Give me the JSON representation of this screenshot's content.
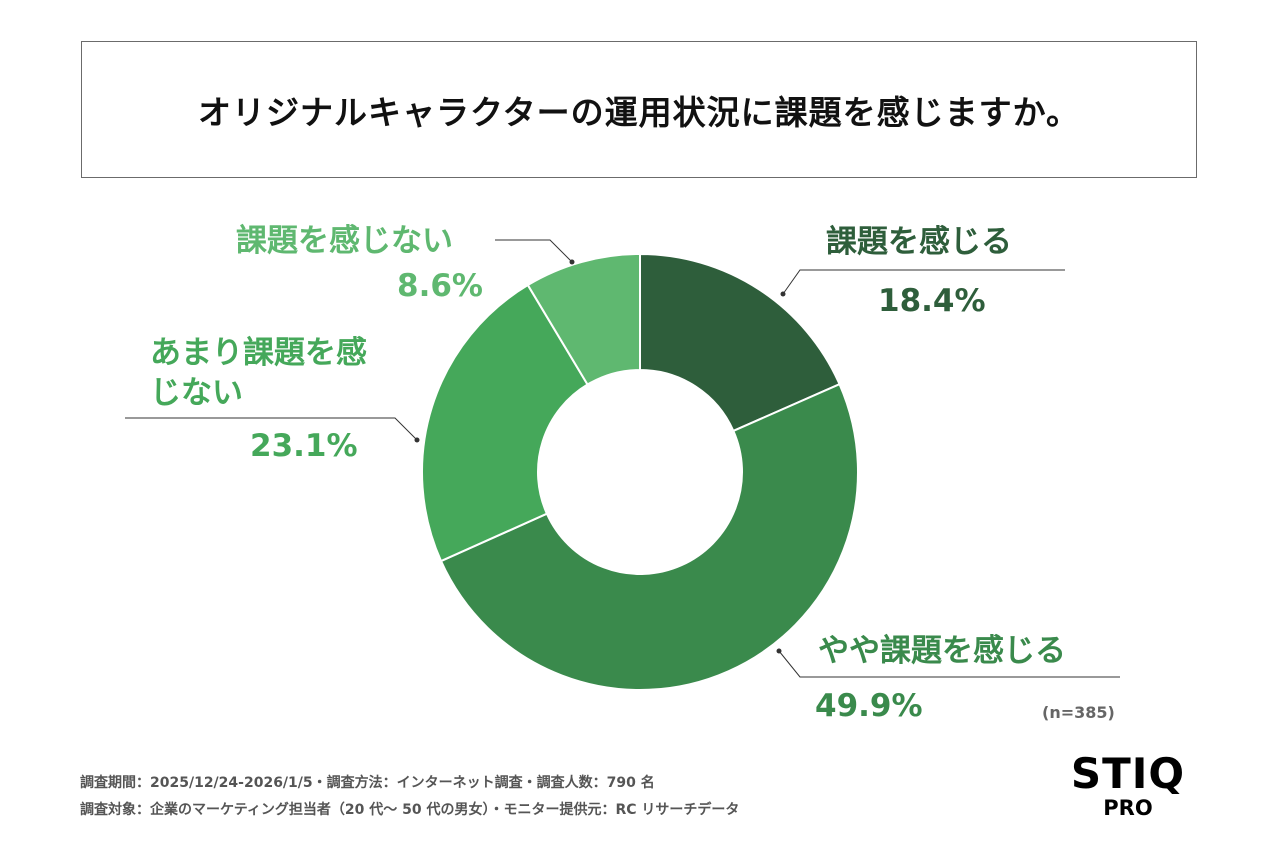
{
  "title": "オリジナルキャラクターの運用状況に課題を感じますか。",
  "chart_data": {
    "type": "pie",
    "donut": true,
    "title": "オリジナルキャラクターの運用状況に課題を感じますか。",
    "categories": [
      "課題を感じる",
      "やや課題を感じる",
      "あまり課題を感じない",
      "課題を感じない"
    ],
    "values": [
      18.4,
      49.9,
      23.1,
      8.6
    ],
    "data_labels": [
      "18.4%",
      "49.9%",
      "23.1%",
      "8.6%"
    ],
    "colors": [
      "#2e5e3b",
      "#3a8a4c",
      "#45a85a",
      "#5fb870"
    ],
    "label_colors": [
      "#2e5e3b",
      "#3a8a4c",
      "#45a85a",
      "#5fb870"
    ],
    "start": "top",
    "direction": "clockwise"
  },
  "sample": "(n=385)",
  "footer": {
    "line1": "調査期間：2025/12/24-2026/1/5・調査方法：インターネット調査・調査人数：790 名",
    "line2": "調査対象：企業のマーケティング担当者（20 代〜 50 代の男女）・モニター提供元：RC リサーチデータ"
  },
  "logo": {
    "main": "STIQ",
    "sub": "PRO"
  }
}
